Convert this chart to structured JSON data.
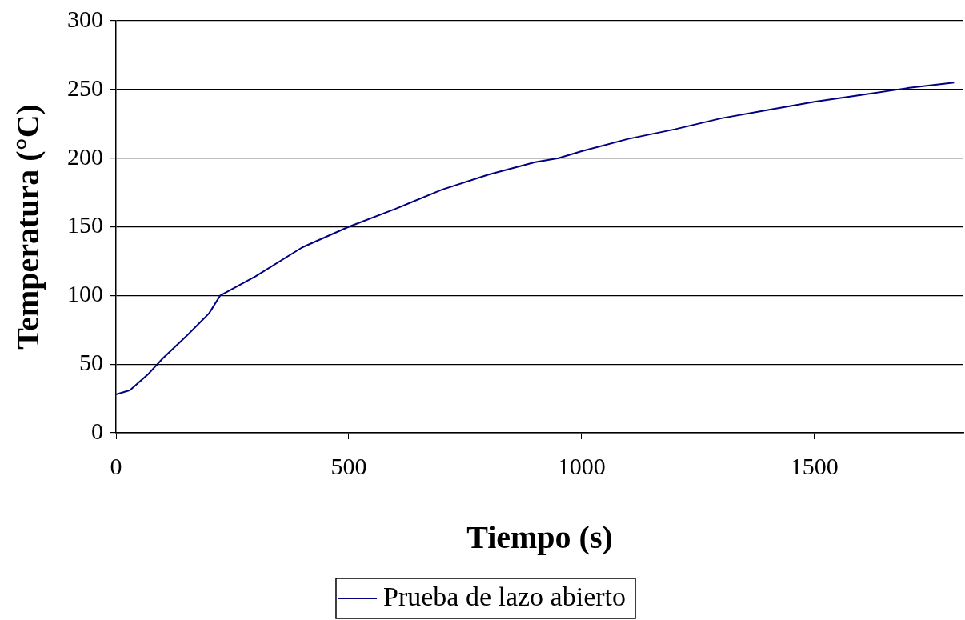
{
  "chart_data": {
    "type": "line",
    "xlabel": "Tiempo (s)",
    "ylabel": "Temperatura (°C)",
    "xlim": [
      0,
      1820
    ],
    "xticks": [
      0,
      500,
      1000,
      1500
    ],
    "ylim": [
      0,
      300
    ],
    "yticks": [
      0,
      50,
      100,
      150,
      200,
      250,
      300
    ],
    "grid": "y",
    "legend": "bottom",
    "marker": "none",
    "line_style": "solid",
    "series": [
      {
        "name": "Prueba de lazo abierto",
        "color": "#000080",
        "x": [
          0,
          30,
          70,
          100,
          150,
          200,
          224,
          300,
          400,
          500,
          600,
          700,
          800,
          900,
          950,
          1000,
          1100,
          1200,
          1300,
          1400,
          1500,
          1600,
          1700,
          1800
        ],
        "values": [
          28,
          31,
          43,
          54,
          70,
          87,
          100,
          114,
          135,
          150,
          163,
          177,
          188,
          197,
          200,
          205,
          214,
          221,
          229,
          235,
          241,
          246,
          251,
          255
        ]
      }
    ]
  }
}
